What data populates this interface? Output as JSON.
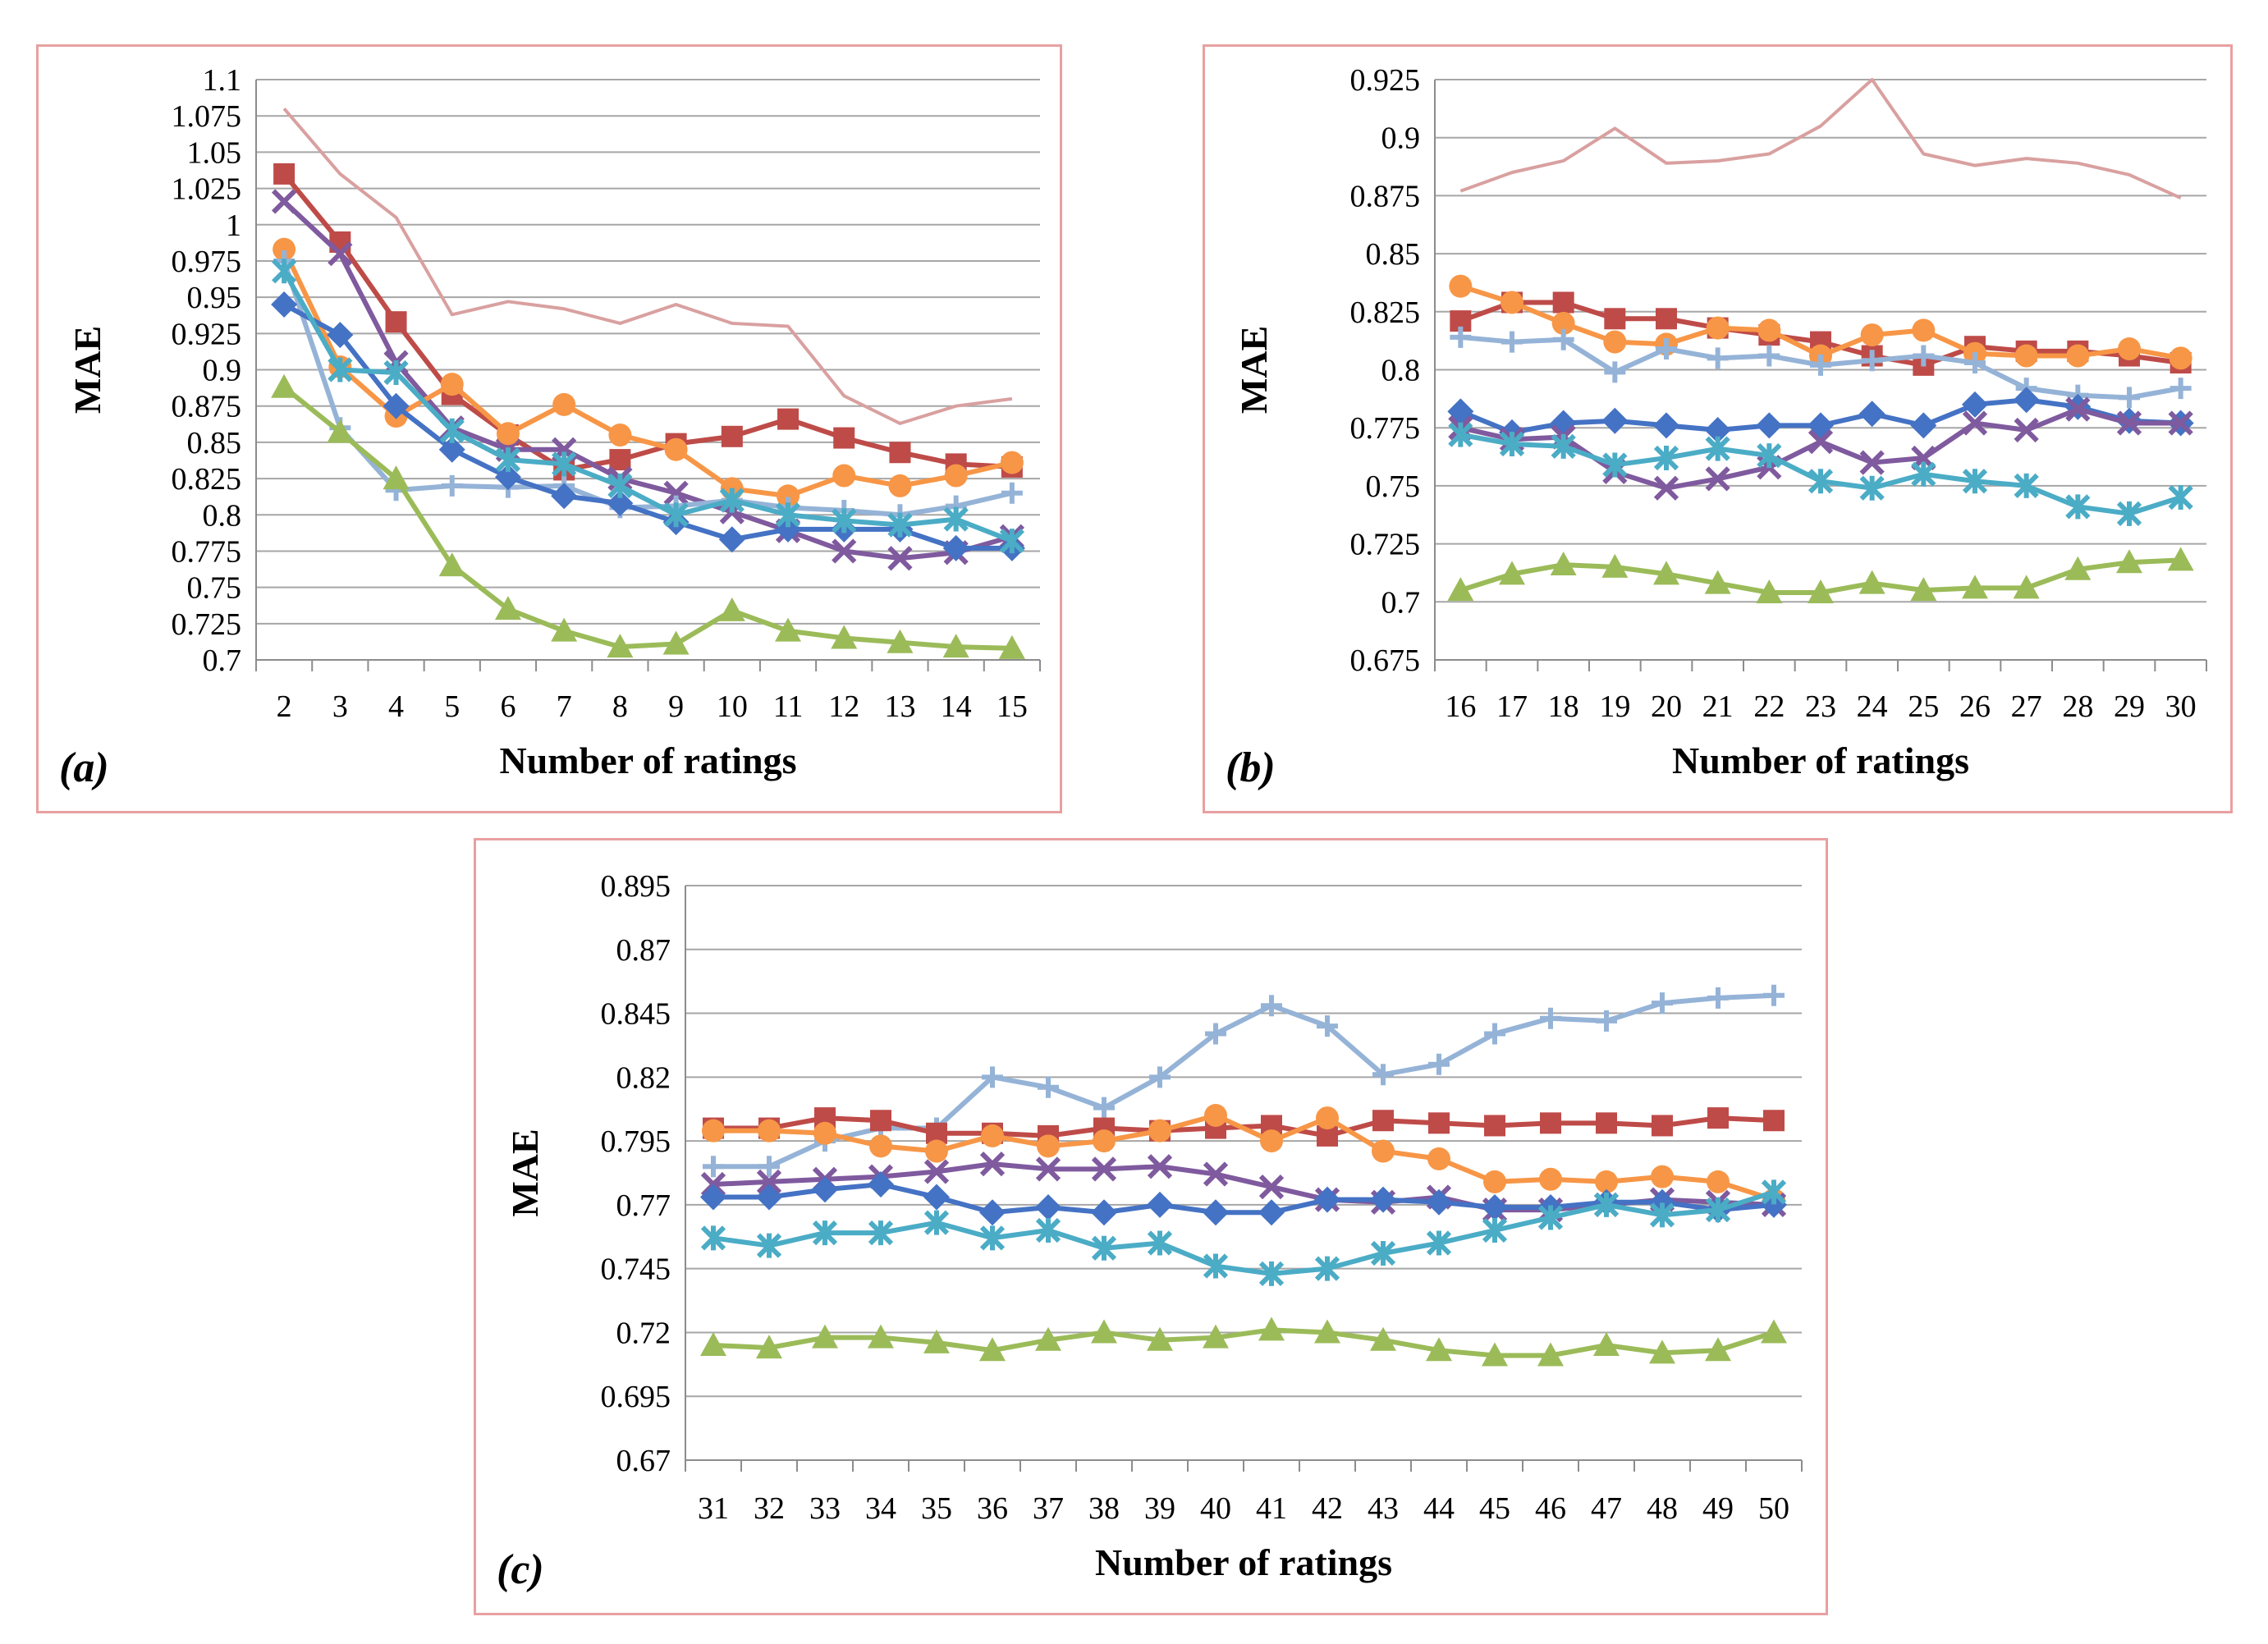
{
  "chart_data": [
    {
      "type": "line",
      "panel_label": "(a)",
      "xlabel": "Number of ratings",
      "ylabel": "MAE",
      "ylim": [
        0.7,
        1.1
      ],
      "yticks": [
        "0.7",
        "0.725",
        "0.75",
        "0.775",
        "0.8",
        "0.825",
        "0.85",
        "0.875",
        "0.9",
        "0.925",
        "0.95",
        "0.975",
        "1",
        "1.025",
        "1.05",
        "1.075",
        "1.1"
      ],
      "x": [
        "2",
        "3",
        "4",
        "5",
        "6",
        "7",
        "8",
        "9",
        "10",
        "11",
        "12",
        "13",
        "14",
        "15"
      ],
      "grid": "horizontal",
      "series": [
        {
          "name": "pink-line",
          "color": "#d9a0a0",
          "marker": "none",
          "values": [
            1.08,
            1.035,
            1.005,
            0.938,
            0.947,
            0.942,
            0.932,
            0.945,
            0.932,
            0.93,
            0.882,
            0.863,
            0.875,
            0.88
          ]
        },
        {
          "name": "red-square",
          "color": "#be4b48",
          "marker": "square",
          "values": [
            1.035,
            0.988,
            0.933,
            0.883,
            0.855,
            0.831,
            0.838,
            0.849,
            0.854,
            0.866,
            0.853,
            0.843,
            0.835,
            0.833
          ]
        },
        {
          "name": "purple-x",
          "color": "#7f5a9e",
          "marker": "x",
          "values": [
            1.016,
            0.98,
            0.905,
            0.86,
            0.845,
            0.845,
            0.825,
            0.815,
            0.802,
            0.789,
            0.775,
            0.77,
            0.774,
            0.785
          ]
        },
        {
          "name": "orange-circle",
          "color": "#f79646",
          "marker": "circle",
          "values": [
            0.983,
            0.902,
            0.868,
            0.89,
            0.856,
            0.876,
            0.855,
            0.845,
            0.818,
            0.813,
            0.827,
            0.82,
            0.827,
            0.836
          ]
        },
        {
          "name": "lightblue-plus",
          "color": "#95b3d7",
          "marker": "plus",
          "values": [
            0.975,
            0.86,
            0.817,
            0.82,
            0.819,
            0.82,
            0.805,
            0.806,
            0.81,
            0.805,
            0.803,
            0.8,
            0.806,
            0.815
          ]
        },
        {
          "name": "blue-diamond",
          "color": "#4472c4",
          "marker": "diamond",
          "values": [
            0.945,
            0.924,
            0.875,
            0.845,
            0.826,
            0.813,
            0.808,
            0.795,
            0.783,
            0.79,
            0.79,
            0.79,
            0.777,
            0.777
          ]
        },
        {
          "name": "teal-star",
          "color": "#4bacc6",
          "marker": "star",
          "values": [
            0.968,
            0.9,
            0.898,
            0.858,
            0.838,
            0.835,
            0.82,
            0.8,
            0.81,
            0.8,
            0.796,
            0.793,
            0.797,
            0.782
          ]
        },
        {
          "name": "green-triangle",
          "color": "#9bbb59",
          "marker": "triangle",
          "values": [
            0.888,
            0.857,
            0.825,
            0.765,
            0.735,
            0.72,
            0.709,
            0.711,
            0.734,
            0.72,
            0.715,
            0.712,
            0.709,
            0.708
          ]
        }
      ]
    },
    {
      "type": "line",
      "panel_label": "(b)",
      "xlabel": "Number of ratings",
      "ylabel": "MAE",
      "ylim": [
        0.675,
        0.925
      ],
      "yticks": [
        "0.675",
        "0.7",
        "0.725",
        "0.75",
        "0.775",
        "0.8",
        "0.825",
        "0.85",
        "0.875",
        "0.9",
        "0.925"
      ],
      "x": [
        "16",
        "17",
        "18",
        "19",
        "20",
        "21",
        "22",
        "23",
        "24",
        "25",
        "26",
        "27",
        "28",
        "29",
        "30"
      ],
      "grid": "horizontal",
      "series": [
        {
          "name": "pink-line",
          "color": "#d9a0a0",
          "marker": "none",
          "values": [
            0.877,
            0.885,
            0.89,
            0.904,
            0.889,
            0.89,
            0.893,
            0.905,
            0.925,
            0.893,
            0.888,
            0.891,
            0.889,
            0.884,
            0.874
          ]
        },
        {
          "name": "red-square",
          "color": "#be4b48",
          "marker": "square",
          "values": [
            0.821,
            0.829,
            0.829,
            0.822,
            0.822,
            0.818,
            0.815,
            0.812,
            0.806,
            0.802,
            0.81,
            0.808,
            0.808,
            0.806,
            0.803
          ]
        },
        {
          "name": "orange-circle",
          "color": "#f79646",
          "marker": "circle",
          "values": [
            0.836,
            0.829,
            0.82,
            0.812,
            0.811,
            0.818,
            0.817,
            0.806,
            0.815,
            0.817,
            0.807,
            0.806,
            0.806,
            0.809,
            0.805
          ]
        },
        {
          "name": "lightblue-plus",
          "color": "#95b3d7",
          "marker": "plus",
          "values": [
            0.814,
            0.812,
            0.813,
            0.799,
            0.809,
            0.805,
            0.806,
            0.802,
            0.804,
            0.806,
            0.803,
            0.792,
            0.789,
            0.788,
            0.792
          ]
        },
        {
          "name": "blue-diamond",
          "color": "#4472c4",
          "marker": "diamond",
          "values": [
            0.782,
            0.773,
            0.777,
            0.778,
            0.776,
            0.774,
            0.776,
            0.776,
            0.781,
            0.776,
            0.785,
            0.787,
            0.784,
            0.778,
            0.777
          ]
        },
        {
          "name": "purple-x",
          "color": "#7f5a9e",
          "marker": "x",
          "values": [
            0.775,
            0.77,
            0.771,
            0.756,
            0.749,
            0.753,
            0.758,
            0.769,
            0.76,
            0.762,
            0.777,
            0.774,
            0.783,
            0.777,
            0.777
          ]
        },
        {
          "name": "teal-star",
          "color": "#4bacc6",
          "marker": "star",
          "values": [
            0.772,
            0.768,
            0.767,
            0.759,
            0.762,
            0.766,
            0.763,
            0.752,
            0.749,
            0.755,
            0.752,
            0.75,
            0.741,
            0.738,
            0.745
          ]
        },
        {
          "name": "green-triangle",
          "color": "#9bbb59",
          "marker": "triangle",
          "values": [
            0.705,
            0.712,
            0.716,
            0.715,
            0.712,
            0.708,
            0.704,
            0.704,
            0.708,
            0.705,
            0.706,
            0.706,
            0.714,
            0.717,
            0.718
          ]
        }
      ]
    },
    {
      "type": "line",
      "panel_label": "(c)",
      "xlabel": "Number of ratings",
      "ylabel": "MAE",
      "ylim": [
        0.67,
        0.895
      ],
      "yticks": [
        "0.67",
        "0.695",
        "0.72",
        "0.745",
        "0.77",
        "0.795",
        "0.82",
        "0.845",
        "0.87",
        "0.895"
      ],
      "x": [
        "31",
        "32",
        "33",
        "34",
        "35",
        "36",
        "37",
        "38",
        "39",
        "40",
        "41",
        "42",
        "43",
        "44",
        "45",
        "46",
        "47",
        "48",
        "49",
        "50"
      ],
      "grid": "horizontal",
      "series": [
        {
          "name": "lightblue-plus",
          "color": "#95b3d7",
          "marker": "plus",
          "values": [
            0.785,
            0.785,
            0.795,
            0.8,
            0.8,
            0.82,
            0.816,
            0.808,
            0.82,
            0.837,
            0.848,
            0.84,
            0.821,
            0.825,
            0.837,
            0.843,
            0.842,
            0.849,
            0.851,
            0.852
          ]
        },
        {
          "name": "red-square",
          "color": "#be4b48",
          "marker": "square",
          "values": [
            0.8,
            0.8,
            0.804,
            0.803,
            0.798,
            0.798,
            0.797,
            0.8,
            0.799,
            0.8,
            0.801,
            0.797,
            0.803,
            0.802,
            0.801,
            0.802,
            0.802,
            0.801,
            0.804,
            0.803
          ]
        },
        {
          "name": "orange-circle",
          "color": "#f79646",
          "marker": "circle",
          "values": [
            0.799,
            0.799,
            0.798,
            0.793,
            0.791,
            0.797,
            0.793,
            0.795,
            0.799,
            0.805,
            0.795,
            0.804,
            0.791,
            0.788,
            0.779,
            0.78,
            0.779,
            0.781,
            0.779,
            0.772
          ]
        },
        {
          "name": "purple-x",
          "color": "#7f5a9e",
          "marker": "x",
          "values": [
            0.778,
            0.779,
            0.78,
            0.781,
            0.783,
            0.786,
            0.784,
            0.784,
            0.785,
            0.782,
            0.777,
            0.772,
            0.771,
            0.773,
            0.768,
            0.768,
            0.77,
            0.772,
            0.771,
            0.77
          ]
        },
        {
          "name": "blue-diamond",
          "color": "#4472c4",
          "marker": "diamond",
          "values": [
            0.773,
            0.773,
            0.776,
            0.778,
            0.773,
            0.767,
            0.769,
            0.767,
            0.77,
            0.767,
            0.767,
            0.772,
            0.772,
            0.771,
            0.769,
            0.769,
            0.771,
            0.771,
            0.768,
            0.77
          ]
        },
        {
          "name": "teal-star",
          "color": "#4bacc6",
          "marker": "star",
          "values": [
            0.757,
            0.754,
            0.759,
            0.759,
            0.763,
            0.757,
            0.76,
            0.753,
            0.755,
            0.746,
            0.743,
            0.745,
            0.751,
            0.755,
            0.76,
            0.765,
            0.77,
            0.766,
            0.768,
            0.775
          ]
        },
        {
          "name": "green-triangle",
          "color": "#9bbb59",
          "marker": "triangle",
          "values": [
            0.715,
            0.714,
            0.718,
            0.718,
            0.716,
            0.713,
            0.717,
            0.72,
            0.717,
            0.718,
            0.721,
            0.72,
            0.717,
            0.713,
            0.711,
            0.711,
            0.715,
            0.712,
            0.713,
            0.72
          ]
        }
      ]
    }
  ]
}
